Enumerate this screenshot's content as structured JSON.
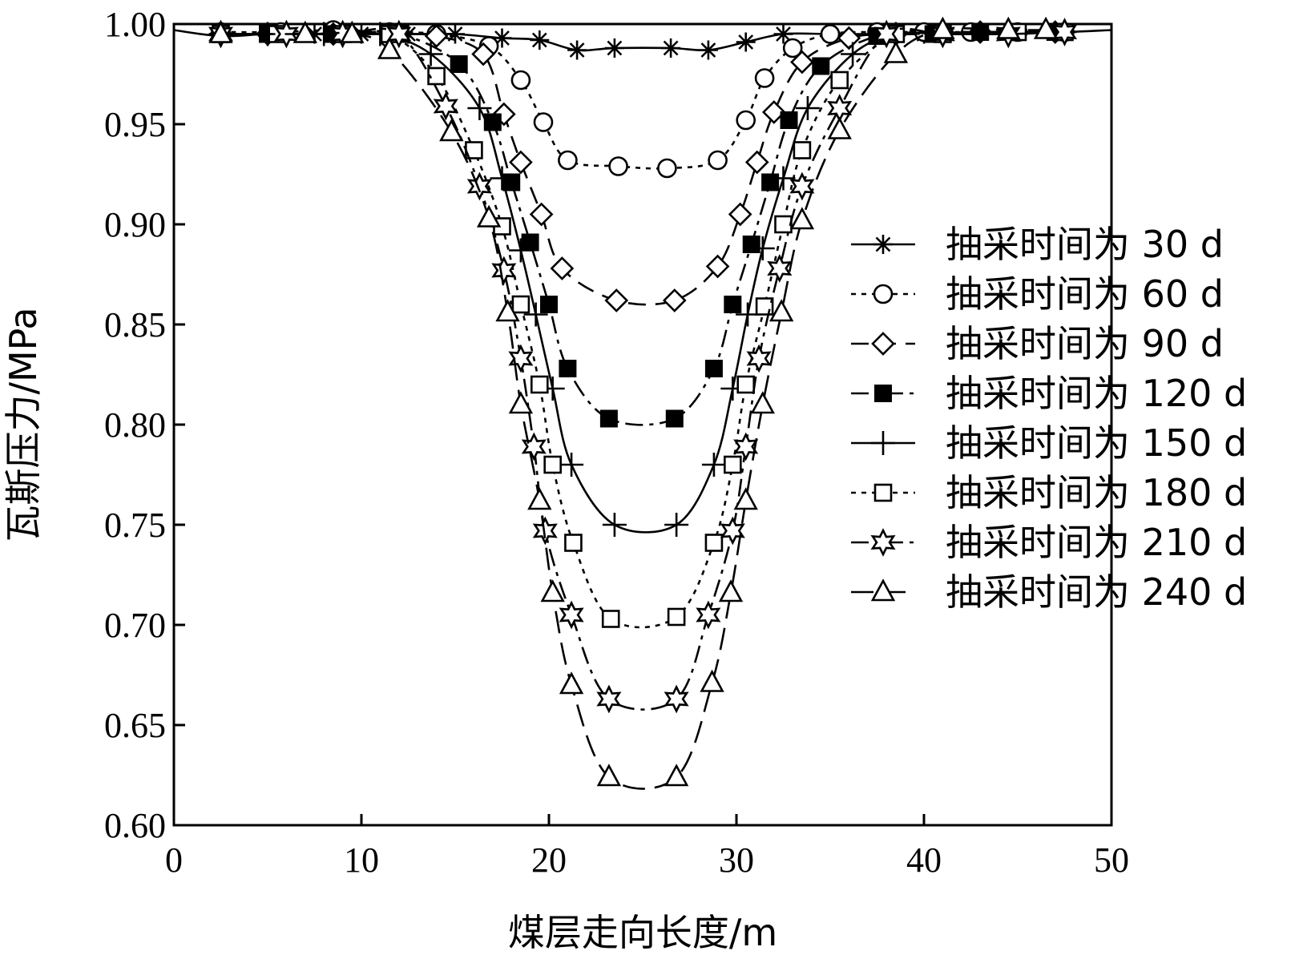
{
  "chart_data": {
    "type": "line",
    "title": "",
    "xlabel": "煤层走向长度/m",
    "ylabel": "瓦斯压力/MPa",
    "xlim": [
      0,
      50
    ],
    "ylim": [
      0.6,
      1.0
    ],
    "x_ticks": [
      "0",
      "10",
      "20",
      "30",
      "40",
      "50"
    ],
    "y_ticks": [
      "0.60",
      "0.65",
      "0.70",
      "0.75",
      "0.80",
      "0.85",
      "0.90",
      "0.95",
      "1.00"
    ],
    "legend_position": "right",
    "grid": false,
    "series": [
      {
        "name": "抽采时间为 30 d",
        "marker": "asterisk",
        "dash": "solid",
        "points": [
          [
            0,
            0.997
          ],
          [
            2.5,
            0.994
          ],
          [
            5,
            0.995
          ],
          [
            7.5,
            0.995
          ],
          [
            10,
            0.995
          ],
          [
            12.5,
            0.995
          ],
          [
            15,
            0.995
          ],
          [
            17.5,
            0.993
          ],
          [
            19.5,
            0.992
          ],
          [
            21.5,
            0.987
          ],
          [
            23.5,
            0.988
          ],
          [
            26.5,
            0.988
          ],
          [
            28.5,
            0.987
          ],
          [
            30.5,
            0.991
          ],
          [
            32.5,
            0.995
          ],
          [
            35,
            0.995
          ],
          [
            37.5,
            0.995
          ],
          [
            40,
            0.995
          ],
          [
            42.5,
            0.996
          ],
          [
            45,
            0.996
          ],
          [
            47.5,
            0.996
          ],
          [
            50,
            0.997
          ]
        ]
      },
      {
        "name": "抽采时间为 60 d",
        "marker": "circle",
        "dash": "dotted",
        "points": [
          [
            2.5,
            0.996
          ],
          [
            5.7,
            0.996
          ],
          [
            8.5,
            0.997
          ],
          [
            11.5,
            0.996
          ],
          [
            14,
            0.995
          ],
          [
            16.8,
            0.989
          ],
          [
            18.5,
            0.972
          ],
          [
            19.7,
            0.951
          ],
          [
            21,
            0.932
          ],
          [
            23.7,
            0.929
          ],
          [
            26.3,
            0.928
          ],
          [
            29,
            0.932
          ],
          [
            30.5,
            0.952
          ],
          [
            31.5,
            0.973
          ],
          [
            33,
            0.988
          ],
          [
            35,
            0.995
          ],
          [
            37.5,
            0.996
          ],
          [
            40,
            0.996
          ],
          [
            42.5,
            0.996
          ],
          [
            45,
            0.996
          ],
          [
            47.5,
            0.996
          ]
        ]
      },
      {
        "name": "抽采时间为 90 d",
        "marker": "diamond",
        "dash": "dashed",
        "points": [
          [
            2.5,
            0.995
          ],
          [
            5,
            0.995
          ],
          [
            8.5,
            0.995
          ],
          [
            11.5,
            0.995
          ],
          [
            14,
            0.994
          ],
          [
            16.5,
            0.985
          ],
          [
            17.6,
            0.955
          ],
          [
            18.5,
            0.931
          ],
          [
            19.6,
            0.905
          ],
          [
            20.7,
            0.878
          ],
          [
            23.6,
            0.862
          ],
          [
            26.7,
            0.862
          ],
          [
            29,
            0.879
          ],
          [
            30.2,
            0.905
          ],
          [
            31.1,
            0.931
          ],
          [
            32,
            0.956
          ],
          [
            33.5,
            0.981
          ],
          [
            36,
            0.993
          ],
          [
            38.5,
            0.995
          ],
          [
            41,
            0.996
          ],
          [
            43,
            0.996
          ],
          [
            47,
            0.996
          ]
        ]
      },
      {
        "name": "抽采时间为 120 d",
        "marker": "filled-square",
        "dash": "dash-dot",
        "points": [
          [
            2.5,
            0.995
          ],
          [
            5,
            0.995
          ],
          [
            8.5,
            0.995
          ],
          [
            12,
            0.995
          ],
          [
            15.2,
            0.98
          ],
          [
            17,
            0.951
          ],
          [
            18,
            0.921
          ],
          [
            19,
            0.891
          ],
          [
            20,
            0.86
          ],
          [
            21,
            0.828
          ],
          [
            23.2,
            0.803
          ],
          [
            26.7,
            0.803
          ],
          [
            28.8,
            0.828
          ],
          [
            29.8,
            0.86
          ],
          [
            30.8,
            0.89
          ],
          [
            31.8,
            0.921
          ],
          [
            32.8,
            0.952
          ],
          [
            34.5,
            0.979
          ],
          [
            37.5,
            0.994
          ],
          [
            40.5,
            0.995
          ],
          [
            43,
            0.996
          ],
          [
            47,
            0.996
          ]
        ]
      },
      {
        "name": "抽采时间为 150 d",
        "marker": "plus",
        "dash": "solid",
        "points": [
          [
            2.5,
            0.995
          ],
          [
            5,
            0.995
          ],
          [
            8,
            0.995
          ],
          [
            11,
            0.995
          ],
          [
            13.7,
            0.985
          ],
          [
            16.3,
            0.958
          ],
          [
            17.5,
            0.923
          ],
          [
            18.5,
            0.887
          ],
          [
            19.3,
            0.855
          ],
          [
            20.2,
            0.818
          ],
          [
            21.2,
            0.78
          ],
          [
            23.5,
            0.75
          ],
          [
            26.8,
            0.75
          ],
          [
            28.8,
            0.78
          ],
          [
            29.8,
            0.818
          ],
          [
            30.6,
            0.855
          ],
          [
            31.4,
            0.888
          ],
          [
            32.5,
            0.923
          ],
          [
            33.8,
            0.958
          ],
          [
            36.2,
            0.985
          ],
          [
            38.5,
            0.995
          ],
          [
            41,
            0.995
          ],
          [
            44.5,
            0.995
          ],
          [
            47.5,
            0.996
          ]
        ]
      },
      {
        "name": "抽采时间为 180 d",
        "marker": "square",
        "dash": "dotted",
        "points": [
          [
            2.5,
            0.995
          ],
          [
            5.5,
            0.995
          ],
          [
            9,
            0.995
          ],
          [
            11.5,
            0.995
          ],
          [
            14,
            0.974
          ],
          [
            16,
            0.937
          ],
          [
            17.5,
            0.899
          ],
          [
            18.5,
            0.86
          ],
          [
            19.5,
            0.82
          ],
          [
            20.2,
            0.78
          ],
          [
            21.3,
            0.741
          ],
          [
            23.3,
            0.703
          ],
          [
            26.8,
            0.704
          ],
          [
            28.8,
            0.741
          ],
          [
            29.8,
            0.78
          ],
          [
            30.5,
            0.82
          ],
          [
            31.5,
            0.859
          ],
          [
            32.5,
            0.9
          ],
          [
            33.5,
            0.937
          ],
          [
            35.5,
            0.972
          ],
          [
            38.5,
            0.995
          ],
          [
            41,
            0.995
          ],
          [
            45,
            0.996
          ],
          [
            47.5,
            0.996
          ]
        ]
      },
      {
        "name": "抽采时间为 210 d",
        "marker": "star6",
        "dash": "dash-dot",
        "points": [
          [
            2.5,
            0.995
          ],
          [
            6,
            0.995
          ],
          [
            9,
            0.995
          ],
          [
            12,
            0.995
          ],
          [
            14.5,
            0.959
          ],
          [
            16.3,
            0.919
          ],
          [
            17.6,
            0.877
          ],
          [
            18.5,
            0.833
          ],
          [
            19.2,
            0.789
          ],
          [
            19.8,
            0.747
          ],
          [
            21.2,
            0.705
          ],
          [
            23.2,
            0.663
          ],
          [
            26.8,
            0.663
          ],
          [
            28.5,
            0.705
          ],
          [
            29.8,
            0.747
          ],
          [
            30.5,
            0.789
          ],
          [
            31.2,
            0.833
          ],
          [
            32.3,
            0.878
          ],
          [
            33.5,
            0.919
          ],
          [
            35.5,
            0.958
          ],
          [
            38,
            0.995
          ],
          [
            41,
            0.995
          ],
          [
            44.5,
            0.995
          ],
          [
            47.5,
            0.996
          ]
        ]
      },
      {
        "name": "抽采时间为 240 d",
        "marker": "triangle",
        "dash": "long-dash",
        "points": [
          [
            2.5,
            0.995
          ],
          [
            7,
            0.995
          ],
          [
            9.5,
            0.995
          ],
          [
            11.5,
            0.987
          ],
          [
            14.8,
            0.946
          ],
          [
            16.8,
            0.903
          ],
          [
            17.8,
            0.856
          ],
          [
            18.5,
            0.81
          ],
          [
            19.5,
            0.762
          ],
          [
            20.2,
            0.716
          ],
          [
            21.2,
            0.67
          ],
          [
            23.2,
            0.624
          ],
          [
            26.8,
            0.624
          ],
          [
            28.7,
            0.671
          ],
          [
            29.7,
            0.716
          ],
          [
            30.5,
            0.762
          ],
          [
            31.4,
            0.81
          ],
          [
            32.4,
            0.856
          ],
          [
            33.5,
            0.902
          ],
          [
            35.5,
            0.947
          ],
          [
            38.5,
            0.985
          ],
          [
            41,
            0.997
          ],
          [
            44.5,
            0.997
          ],
          [
            46.5,
            0.997
          ]
        ]
      }
    ]
  }
}
